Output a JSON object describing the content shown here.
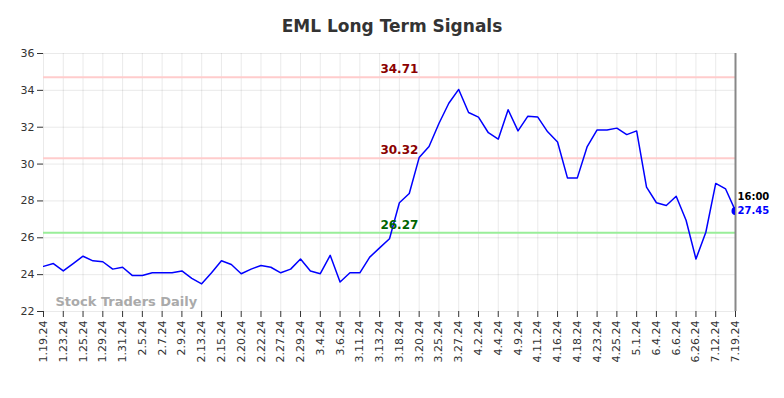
{
  "chart_data": {
    "type": "line",
    "title": "EML Long Term Signals",
    "watermark": "Stock Traders Daily",
    "end_label": "16:00",
    "color": "#0000ff",
    "grid": true,
    "ylim": [
      22,
      36
    ],
    "yticks": [
      22,
      24,
      26,
      28,
      30,
      32,
      34,
      36
    ],
    "categories": [
      "1.19.24",
      null,
      "1.23.24",
      null,
      "1.25.24",
      null,
      "1.29.24",
      null,
      "1.31.24",
      null,
      "2.5.24",
      null,
      "2.7.24",
      null,
      "2.9.24",
      null,
      "2.13.24",
      null,
      "2.15.24",
      null,
      "2.20.24",
      null,
      "2.22.24",
      null,
      "2.27.24",
      null,
      "2.29.24",
      null,
      "3.4.24",
      null,
      "3.6.24",
      null,
      "3.11.24",
      null,
      "3.13.24",
      null,
      "3.18.24",
      null,
      "3.20.24",
      null,
      "3.25.24",
      null,
      "3.27.24",
      null,
      "4.2.24",
      null,
      "4.4.24",
      null,
      "4.9.24",
      null,
      "4.11.24",
      null,
      "4.16.24",
      null,
      "4.18.24",
      null,
      "4.23.24",
      null,
      "4.25.24",
      null,
      "5.1.24",
      null,
      "6.4.24",
      null,
      "6.6.24",
      null,
      "6.26.24",
      null,
      "7.12.24",
      null,
      "7.19.24"
    ],
    "values": [
      24.45,
      24.6,
      24.2,
      24.6,
      25.0,
      24.75,
      24.7,
      24.3,
      24.4,
      23.95,
      23.95,
      24.1,
      24.1,
      24.1,
      24.2,
      23.8,
      23.5,
      24.1,
      24.75,
      24.55,
      24.05,
      24.3,
      24.5,
      24.4,
      24.1,
      24.3,
      24.85,
      24.2,
      24.05,
      25.05,
      23.6,
      24.1,
      24.1,
      24.95,
      25.45,
      25.95,
      27.9,
      28.4,
      30.35,
      30.95,
      32.2,
      33.3,
      34.05,
      32.8,
      32.55,
      31.7,
      31.35,
      32.95,
      31.8,
      32.6,
      32.55,
      31.75,
      31.2,
      29.25,
      29.25,
      30.95,
      31.85,
      31.85,
      31.95,
      31.6,
      31.8,
      28.75,
      27.9,
      27.75,
      28.25,
      26.95,
      24.85,
      26.3,
      28.95,
      28.65,
      27.45
    ],
    "reference_lines": [
      {
        "value": 34.71,
        "color": "#ffcccc",
        "label_color": "#8b0000"
      },
      {
        "value": 30.32,
        "color": "#ffcccc",
        "label_color": "#8b0000"
      },
      {
        "value": 26.27,
        "color": "#99ee99",
        "label_color": "#006400"
      }
    ]
  }
}
